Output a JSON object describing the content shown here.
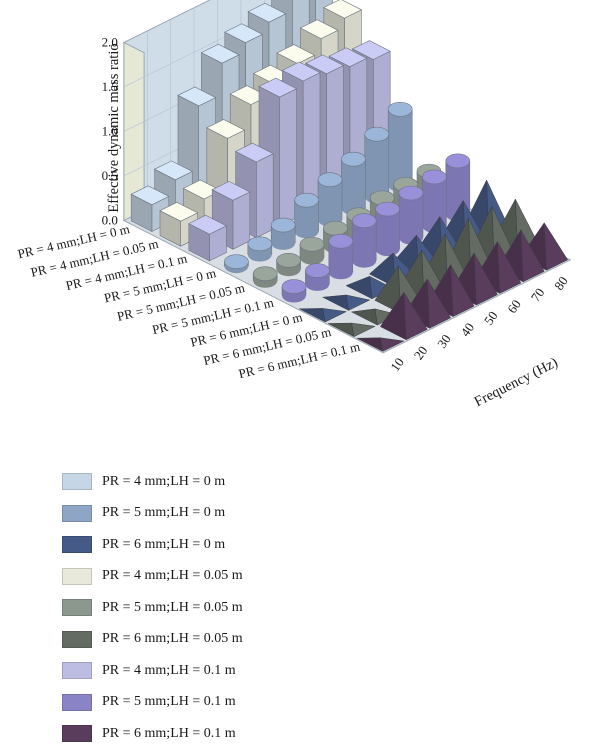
{
  "chart_data": {
    "type": "bar",
    "subtype": "3d-bar-cylinder-pyramid",
    "title": "",
    "ylabel": "Effective dynamic mass ratio",
    "xlabel": "Frequency (Hz)",
    "zlim": [
      0,
      2.0
    ],
    "z_ticks": [
      "0.0",
      "0.5",
      "1.0",
      "1.5",
      "2.0"
    ],
    "frequencies": [
      "10",
      "20",
      "30",
      "40",
      "50",
      "60",
      "70",
      "80"
    ],
    "series": [
      {
        "name": "PR = 4 mm;LH = 0 m",
        "shape": "box",
        "color": "#c5d6e6",
        "values": [
          0.3,
          0.45,
          1.15,
          1.5,
          1.6,
          1.7,
          1.85,
          2.2
        ]
      },
      {
        "name": "PR = 4 mm;LH = 0.05 m",
        "shape": "box",
        "color": "#e8e9db",
        "values": [
          0.28,
          0.4,
          0.95,
          1.2,
          1.3,
          1.4,
          1.55,
          1.65
        ]
      },
      {
        "name": "PR = 4 mm;LH = 0.1 m",
        "shape": "box",
        "color": "#bcbde3",
        "values": [
          0.3,
          0.55,
          0.85,
          1.45,
          1.5,
          1.45,
          1.4,
          1.35
        ]
      },
      {
        "name": "PR = 5 mm;LH = 0 m",
        "shape": "cylinder",
        "color": "#8ea5c5",
        "values": [
          0.05,
          0.12,
          0.2,
          0.35,
          0.45,
          0.55,
          0.7,
          0.85
        ]
      },
      {
        "name": "PR = 5 mm;LH = 0.05 m",
        "shape": "cylinder",
        "color": "#8c978e",
        "values": [
          0.08,
          0.1,
          0.15,
          0.2,
          0.22,
          0.28,
          0.3,
          0.32
        ]
      },
      {
        "name": "PR = 5 mm;LH = 0.1 m",
        "shape": "cylinder",
        "color": "#8a84c6",
        "values": [
          0.1,
          0.15,
          0.35,
          0.45,
          0.45,
          0.5,
          0.55,
          0.6
        ]
      },
      {
        "name": "PR = 6 mm;LH = 0 m",
        "shape": "pyramid",
        "color": "#455a86",
        "values": [
          0.02,
          0.04,
          0.12,
          0.25,
          0.32,
          0.4,
          0.45,
          0.55
        ]
      },
      {
        "name": "PR = 6 mm;LH = 0.05 m",
        "shape": "pyramid",
        "color": "#636b62",
        "values": [
          0.02,
          0.05,
          0.4,
          0.45,
          0.5,
          0.55,
          0.55,
          0.5
        ]
      },
      {
        "name": "PR = 6 mm;LH = 0.1 m",
        "shape": "pyramid",
        "color": "#5a3c5d",
        "values": [
          0.02,
          0.4,
          0.42,
          0.45,
          0.45,
          0.45,
          0.45,
          0.4
        ]
      }
    ]
  },
  "legend": {
    "items": [
      {
        "label": "PR = 4 mm;LH = 0 m",
        "color": "#c5d6e6"
      },
      {
        "label": "PR = 5 mm;LH = 0 m",
        "color": "#8ea5c5"
      },
      {
        "label": "PR = 6 mm;LH = 0 m",
        "color": "#455a86"
      },
      {
        "label": "PR = 4 mm;LH = 0.05 m",
        "color": "#e8e9db"
      },
      {
        "label": "PR = 5 mm;LH = 0.05 m",
        "color": "#8c978e"
      },
      {
        "label": "PR = 6 mm;LH = 0.05 m",
        "color": "#636b62"
      },
      {
        "label": "PR = 4 mm;LH = 0.1 m",
        "color": "#bcbde3"
      },
      {
        "label": "PR = 5 mm;LH = 0.1 m",
        "color": "#8a84c6"
      },
      {
        "label": "PR = 6 mm;LH = 0.1 m",
        "color": "#5a3c5d"
      }
    ]
  }
}
